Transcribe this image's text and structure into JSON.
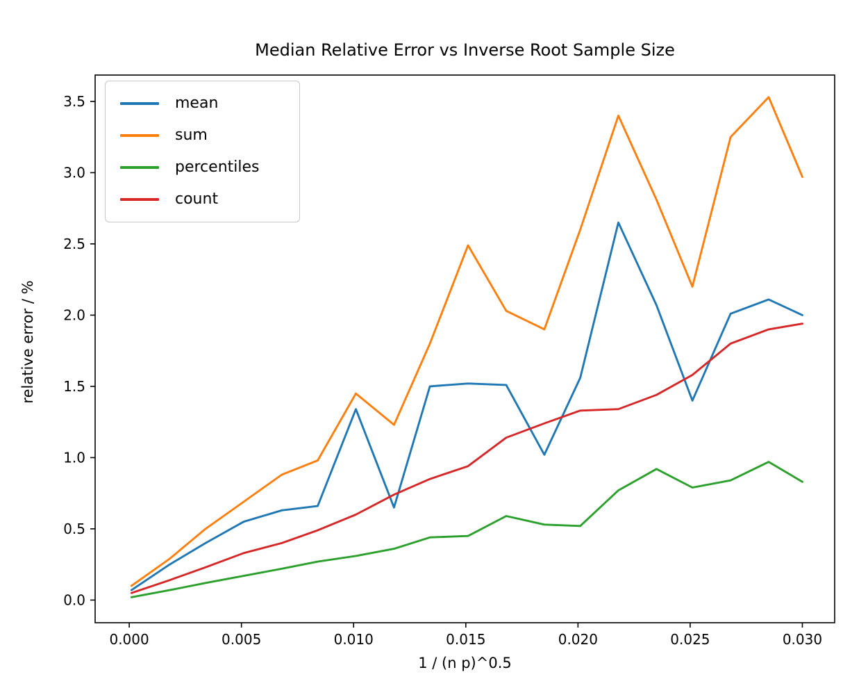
{
  "title": "Median Relative Error vs Inverse Root Sample Size",
  "axes": {
    "xlabel": "1 / (n p)^0.5",
    "ylabel": "relative error / %",
    "x_tick_labels": [
      "0.000",
      "0.005",
      "0.010",
      "0.015",
      "0.020",
      "0.025",
      "0.030"
    ],
    "x_tick_values": [
      0.0,
      0.005,
      0.01,
      0.015,
      0.02,
      0.025,
      0.03
    ],
    "y_tick_labels": [
      "0.0",
      "0.5",
      "1.0",
      "1.5",
      "2.0",
      "2.5",
      "3.0",
      "3.5"
    ],
    "y_tick_values": [
      0.0,
      0.5,
      1.0,
      1.5,
      2.0,
      2.5,
      3.0,
      3.5
    ],
    "xlim": [
      -0.00152,
      0.03144
    ],
    "ylim": [
      -0.159,
      3.685
    ],
    "grid": false,
    "spine_color": "#000000",
    "background": "#ffffff"
  },
  "legend": {
    "position": "upper-left",
    "entries": [
      {
        "label": "mean",
        "color": "#1f77b4"
      },
      {
        "label": "sum",
        "color": "#ff7f0e"
      },
      {
        "label": "percentiles",
        "color": "#2ca02c"
      },
      {
        "label": "count",
        "color": "#d62728"
      }
    ]
  },
  "chart_data": {
    "type": "line",
    "title": "Median Relative Error vs Inverse Root Sample Size",
    "xlabel": "1 / (n p)^0.5",
    "ylabel": "relative error / %",
    "xlim": [
      -0.00152,
      0.03144
    ],
    "ylim": [
      -0.159,
      3.685
    ],
    "legend_position": "upper-left",
    "grid": false,
    "x": [
      0.0001,
      0.0018,
      0.0034,
      0.0051,
      0.0068,
      0.0084,
      0.0101,
      0.0118,
      0.0134,
      0.0151,
      0.0168,
      0.0185,
      0.0201,
      0.0218,
      0.0235,
      0.0251,
      0.0268,
      0.0285,
      0.03
    ],
    "series": [
      {
        "name": "mean",
        "color": "#1f77b4",
        "values": [
          0.07,
          0.25,
          0.4,
          0.55,
          0.63,
          0.66,
          1.34,
          0.65,
          1.5,
          1.52,
          1.51,
          1.02,
          1.56,
          2.65,
          2.07,
          1.4,
          2.01,
          2.11,
          2.0
        ]
      },
      {
        "name": "sum",
        "color": "#ff7f0e",
        "values": [
          0.1,
          0.29,
          0.5,
          0.69,
          0.88,
          0.98,
          1.45,
          1.23,
          1.8,
          2.49,
          2.03,
          1.9,
          2.6,
          3.4,
          2.81,
          2.2,
          3.25,
          3.53,
          2.97
        ]
      },
      {
        "name": "percentiles",
        "color": "#2ca02c",
        "values": [
          0.02,
          0.07,
          0.12,
          0.17,
          0.22,
          0.27,
          0.31,
          0.36,
          0.44,
          0.45,
          0.59,
          0.53,
          0.52,
          0.77,
          0.92,
          0.79,
          0.84,
          0.97,
          0.83
        ]
      },
      {
        "name": "count",
        "color": "#d62728",
        "values": [
          0.05,
          0.14,
          0.23,
          0.33,
          0.4,
          0.49,
          0.6,
          0.74,
          0.85,
          0.94,
          1.14,
          1.24,
          1.33,
          1.34,
          1.44,
          1.58,
          1.8,
          1.9,
          1.94
        ]
      }
    ]
  },
  "style": {
    "line_width": 2.9,
    "tick_length": 7,
    "tick_width": 1.6,
    "spine_width": 1.6,
    "tick_font_size": 20
  }
}
